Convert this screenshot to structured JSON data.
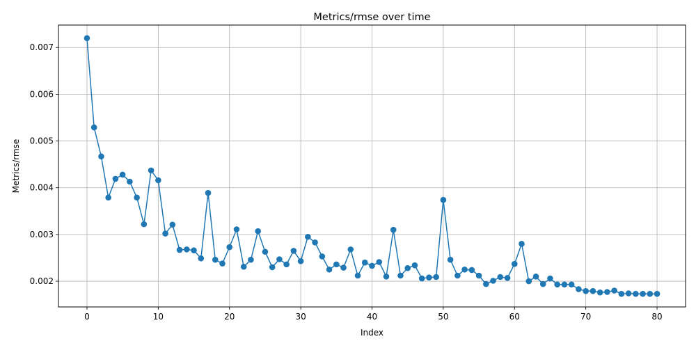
{
  "chart_data": {
    "type": "line",
    "title": "Metrics/rmse over time",
    "xlabel": "Index",
    "ylabel": "Metrics/rmse",
    "xlim": [
      -4,
      84
    ],
    "ylim": [
      0.00145,
      0.00748
    ],
    "x_ticks": [
      0,
      10,
      20,
      30,
      40,
      50,
      60,
      70,
      80
    ],
    "y_ticks": [
      0.002,
      0.003,
      0.004,
      0.005,
      0.006,
      0.007
    ],
    "y_tick_labels": [
      "0.002",
      "0.003",
      "0.004",
      "0.005",
      "0.006",
      "0.007"
    ],
    "grid": true,
    "marker": "circle",
    "color": "#1f77b4",
    "series": [
      {
        "x": [
          0,
          1,
          2,
          3,
          4,
          5,
          6,
          7,
          8,
          9,
          10,
          11,
          12,
          13,
          14,
          15,
          16,
          17,
          18,
          19,
          20,
          21,
          22,
          23,
          24,
          25,
          26,
          27,
          28,
          29,
          30,
          31,
          32,
          33,
          34,
          35,
          36,
          37,
          38,
          39,
          40,
          41,
          42,
          43,
          44,
          45,
          46,
          47,
          48,
          49,
          50,
          51,
          52,
          53,
          54,
          55,
          56,
          57,
          58,
          59,
          60,
          61,
          62,
          63,
          64,
          65,
          66,
          67,
          68,
          69,
          70,
          71,
          72,
          73,
          74,
          75,
          76,
          77,
          78,
          79,
          80
        ],
        "values": [
          0.0072,
          0.00529,
          0.00467,
          0.00379,
          0.00419,
          0.00428,
          0.00413,
          0.00379,
          0.00322,
          0.00437,
          0.00416,
          0.00302,
          0.00321,
          0.00267,
          0.00268,
          0.00266,
          0.00249,
          0.00389,
          0.00246,
          0.00238,
          0.00273,
          0.00311,
          0.00231,
          0.00246,
          0.00307,
          0.00263,
          0.0023,
          0.00247,
          0.00236,
          0.00265,
          0.00243,
          0.00295,
          0.00283,
          0.00253,
          0.00225,
          0.00236,
          0.00229,
          0.00268,
          0.00212,
          0.0024,
          0.00233,
          0.00241,
          0.0021,
          0.0031,
          0.00212,
          0.00228,
          0.00234,
          0.00206,
          0.00208,
          0.00209,
          0.00374,
          0.00246,
          0.00212,
          0.00225,
          0.00224,
          0.00212,
          0.00194,
          0.00201,
          0.00209,
          0.00207,
          0.00237,
          0.0028,
          0.002,
          0.0021,
          0.00194,
          0.00206,
          0.00193,
          0.00193,
          0.00193,
          0.00183,
          0.00179,
          0.00179,
          0.00176,
          0.00177,
          0.0018,
          0.00173,
          0.00174,
          0.00173,
          0.00173,
          0.00173,
          0.00173
        ]
      }
    ]
  }
}
